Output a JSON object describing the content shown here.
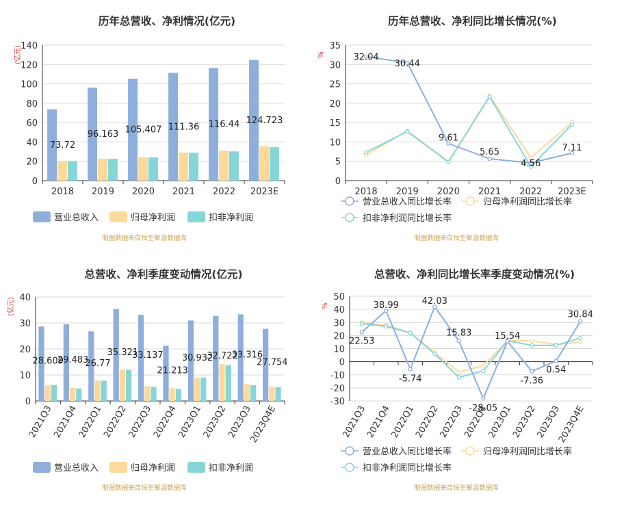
{
  "source_note": "制图数据来自恒生聚源数据库",
  "colors": {
    "revenue": "#8eaedc",
    "net_profit": "#fdd99a",
    "deducted_profit": "#86d6d8",
    "axis_unit": "#e0312b",
    "source": "#c8a45a"
  },
  "chart_data": [
    {
      "type": "bar",
      "title": "历年总营收、净利情况(亿元)",
      "ylabel": "(亿元)",
      "categories": [
        "2018",
        "2019",
        "2020",
        "2021",
        "2022",
        "2023E"
      ],
      "ylim": [
        0,
        140
      ],
      "yticks": [
        0,
        20,
        40,
        60,
        80,
        100,
        120,
        140
      ],
      "series": [
        {
          "name": "营业总收入",
          "values": [
            73.72,
            96.163,
            105.407,
            111.36,
            116.44,
            124.723
          ],
          "labels": [
            "73.72",
            "96.163",
            "105.407",
            "111.36",
            "116.44",
            "124.723"
          ]
        },
        {
          "name": "归母净利润",
          "values": [
            20.1,
            22.7,
            24.2,
            29.0,
            30.9,
            35.6
          ]
        },
        {
          "name": "扣非净利润",
          "values": [
            20.2,
            22.6,
            24.0,
            28.9,
            30.2,
            34.6
          ]
        }
      ],
      "legend": "bottom",
      "grid": true
    },
    {
      "type": "line",
      "title": "历年总营收、净利同比增长情况(%)",
      "ylabel": "%",
      "categories": [
        "2018",
        "2019",
        "2020",
        "2021",
        "2022",
        "2023E"
      ],
      "ylim": [
        0,
        35
      ],
      "yticks": [
        0,
        5,
        10,
        15,
        20,
        25,
        30,
        35
      ],
      "series": [
        {
          "name": "营业总收入同比增长率",
          "values": [
            32.04,
            30.44,
            9.61,
            5.65,
            4.56,
            7.11
          ],
          "labels": [
            "32.04",
            "30.44",
            "9.61",
            "5.65",
            "4.56",
            "7.11"
          ]
        },
        {
          "name": "归母净利润同比增长率",
          "values": [
            6.6,
            12.9,
            4.9,
            21.9,
            5.9,
            15.1
          ]
        },
        {
          "name": "扣非净利润同比增长率",
          "values": [
            7.3,
            12.7,
            4.8,
            21.7,
            3.6,
            14.5
          ]
        }
      ],
      "legend": "bottom",
      "grid": true
    },
    {
      "type": "bar",
      "title": "总营收、净利季度变动情况(亿元)",
      "ylabel": "(亿元)",
      "categories": [
        "2021Q3",
        "2021Q4",
        "2022Q1",
        "2022Q2",
        "2022Q3",
        "2022Q4",
        "2023Q1",
        "2023Q2",
        "2023Q3",
        "2023Q4E"
      ],
      "ylim": [
        0,
        40
      ],
      "yticks": [
        0,
        10,
        20,
        30,
        40
      ],
      "series": [
        {
          "name": "营业总收入",
          "values": [
            28.609,
            29.483,
            26.77,
            35.321,
            33.137,
            21.213,
            30.932,
            32.722,
            33.316,
            27.754
          ],
          "labels": [
            "28.609",
            "29.483",
            "26.77",
            "35.321",
            "33.137",
            "21.213",
            "30.932",
            "32.722",
            "33.316",
            "27.754"
          ]
        },
        {
          "name": "归母净利润",
          "values": [
            6.0,
            5.0,
            7.9,
            12.1,
            5.7,
            4.9,
            9.0,
            14.2,
            6.5,
            5.5
          ]
        },
        {
          "name": "扣非净利润",
          "values": [
            6.1,
            4.8,
            7.8,
            12.0,
            5.4,
            4.6,
            9.0,
            13.8,
            6.1,
            5.3
          ]
        }
      ],
      "legend": "bottom",
      "grid": true
    },
    {
      "type": "line",
      "title": "总营收、净利同比增长率季度变动情况(%)",
      "ylabel": "%",
      "categories": [
        "2021Q3",
        "2021Q4",
        "2022Q1",
        "2022Q2",
        "2022Q3",
        "2022Q4",
        "2023Q1",
        "2023Q2",
        "2023Q3",
        "2023Q4E"
      ],
      "ylim": [
        -30,
        50
      ],
      "yticks": [
        -30,
        -20,
        -10,
        0,
        10,
        20,
        30,
        40,
        50
      ],
      "series": [
        {
          "name": "营业总收入同比增长率",
          "values": [
            22.53,
            38.99,
            -5.74,
            42.03,
            15.83,
            -28.05,
            15.54,
            -7.36,
            0.54,
            30.84
          ],
          "labels": [
            "22.53",
            "38.99",
            "-5.74",
            "42.03",
            "15.83",
            "-28.05",
            "15.54",
            "-7.36",
            "0.54",
            "30.84"
          ]
        },
        {
          "name": "归母净利润同比增长率",
          "values": [
            30.0,
            28.0,
            22.0,
            7.0,
            -8.0,
            -3.0,
            16.0,
            16.0,
            13.0,
            15.0
          ]
        },
        {
          "name": "扣非净利润同比增长率",
          "values": [
            29.0,
            27.0,
            22.0,
            6.0,
            -12.0,
            -7.0,
            16.0,
            12.5,
            12.5,
            18.0
          ]
        }
      ],
      "legend": "bottom",
      "grid": true
    }
  ]
}
